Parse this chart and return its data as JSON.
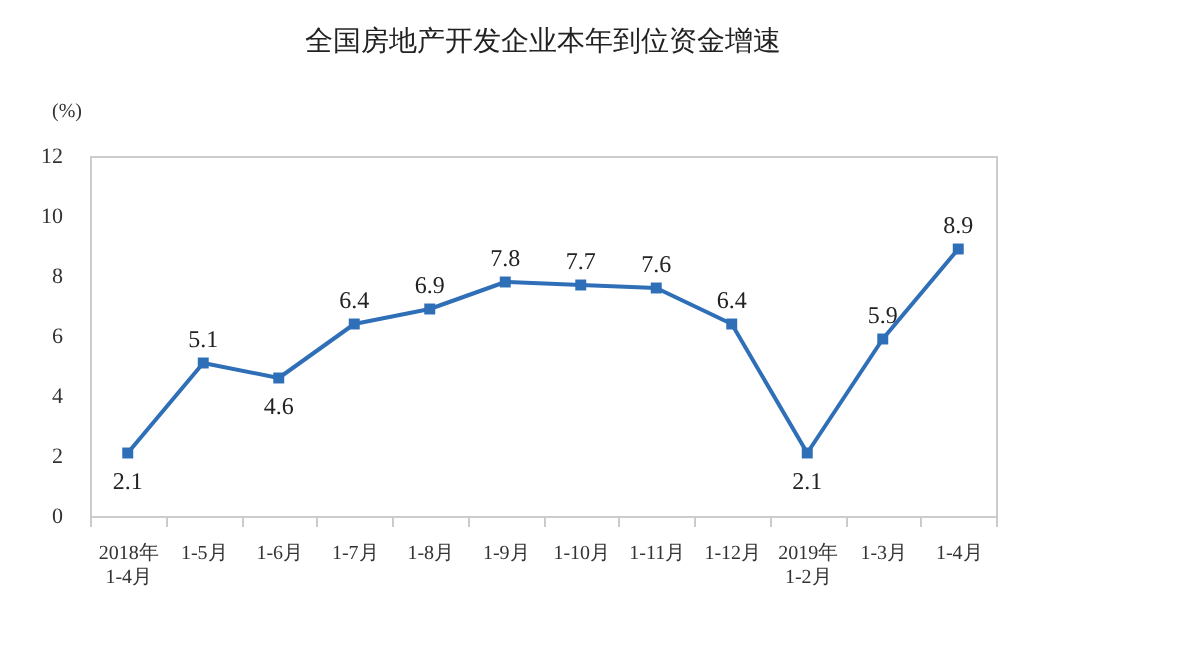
{
  "chart_data": {
    "type": "line",
    "title": "全国房地产开发企业本年到位资金增速",
    "ylabel": "(%)",
    "categories": [
      "2018年\n1-4月",
      "1-5月",
      "1-6月",
      "1-7月",
      "1-8月",
      "1-9月",
      "1-10月",
      "1-11月",
      "1-12月",
      "2019年\n1-2月",
      "1-3月",
      "1-4月"
    ],
    "series": [
      {
        "color": "#2e6fb7",
        "values": [
          2.1,
          5.1,
          4.6,
          6.4,
          6.9,
          7.8,
          7.7,
          7.6,
          6.4,
          2.1,
          5.9,
          8.9
        ]
      }
    ],
    "ylim": [
      0,
      12
    ],
    "yticks": [
      0,
      2,
      4,
      6,
      8,
      10,
      12
    ],
    "grid": false,
    "marker": "square",
    "line_style": "solid",
    "data_labels": true,
    "legend": false
  }
}
